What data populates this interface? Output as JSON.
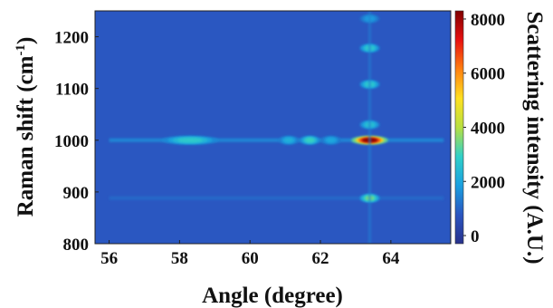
{
  "chart_data": {
    "type": "heatmap",
    "xlabel": "Angle (degree)",
    "ylabel_main": "Raman shift (cm",
    "ylabel_sup": "-1",
    "ylabel_end": ")",
    "colorbar_label": "Scattering intensity (A.U.)",
    "xlim": [
      55.6,
      65.7
    ],
    "ylim": [
      800,
      1250
    ],
    "x_ticks": [
      56,
      58,
      60,
      62,
      64
    ],
    "y_ticks": [
      800,
      900,
      1000,
      1100,
      1200
    ],
    "colorbar_range": [
      -300,
      8300
    ],
    "colorbar_ticks": [
      0,
      2000,
      4000,
      6000,
      8000
    ],
    "background_intensity": 800,
    "colormap": [
      "#28328c",
      "#2a55c0",
      "#1aa0e0",
      "#30d0c8",
      "#b8e040",
      "#ffe020",
      "#ff8010",
      "#e81010",
      "#800000"
    ],
    "bands": [
      {
        "shift": 1000,
        "angle_start": 56.0,
        "angle_end": 65.5,
        "intensity": 1600
      },
      {
        "shift": 888,
        "angle_start": 56.0,
        "angle_end": 65.5,
        "intensity": 1100
      }
    ],
    "peaks": [
      {
        "angle": 58.3,
        "shift": 1000,
        "intensity": 2800
      },
      {
        "angle": 61.7,
        "shift": 1000,
        "intensity": 3000
      },
      {
        "angle": 61.1,
        "shift": 1000,
        "intensity": 2200
      },
      {
        "angle": 62.3,
        "shift": 1000,
        "intensity": 2000
      },
      {
        "angle": 63.4,
        "shift": 1000,
        "intensity": 8200
      },
      {
        "angle": 63.4,
        "shift": 888,
        "intensity": 3500
      },
      {
        "angle": 63.4,
        "shift": 1030,
        "intensity": 2600
      },
      {
        "angle": 63.4,
        "shift": 1108,
        "intensity": 2800
      },
      {
        "angle": 63.4,
        "shift": 1178,
        "intensity": 2800
      },
      {
        "angle": 63.4,
        "shift": 1235,
        "intensity": 1800
      }
    ]
  }
}
